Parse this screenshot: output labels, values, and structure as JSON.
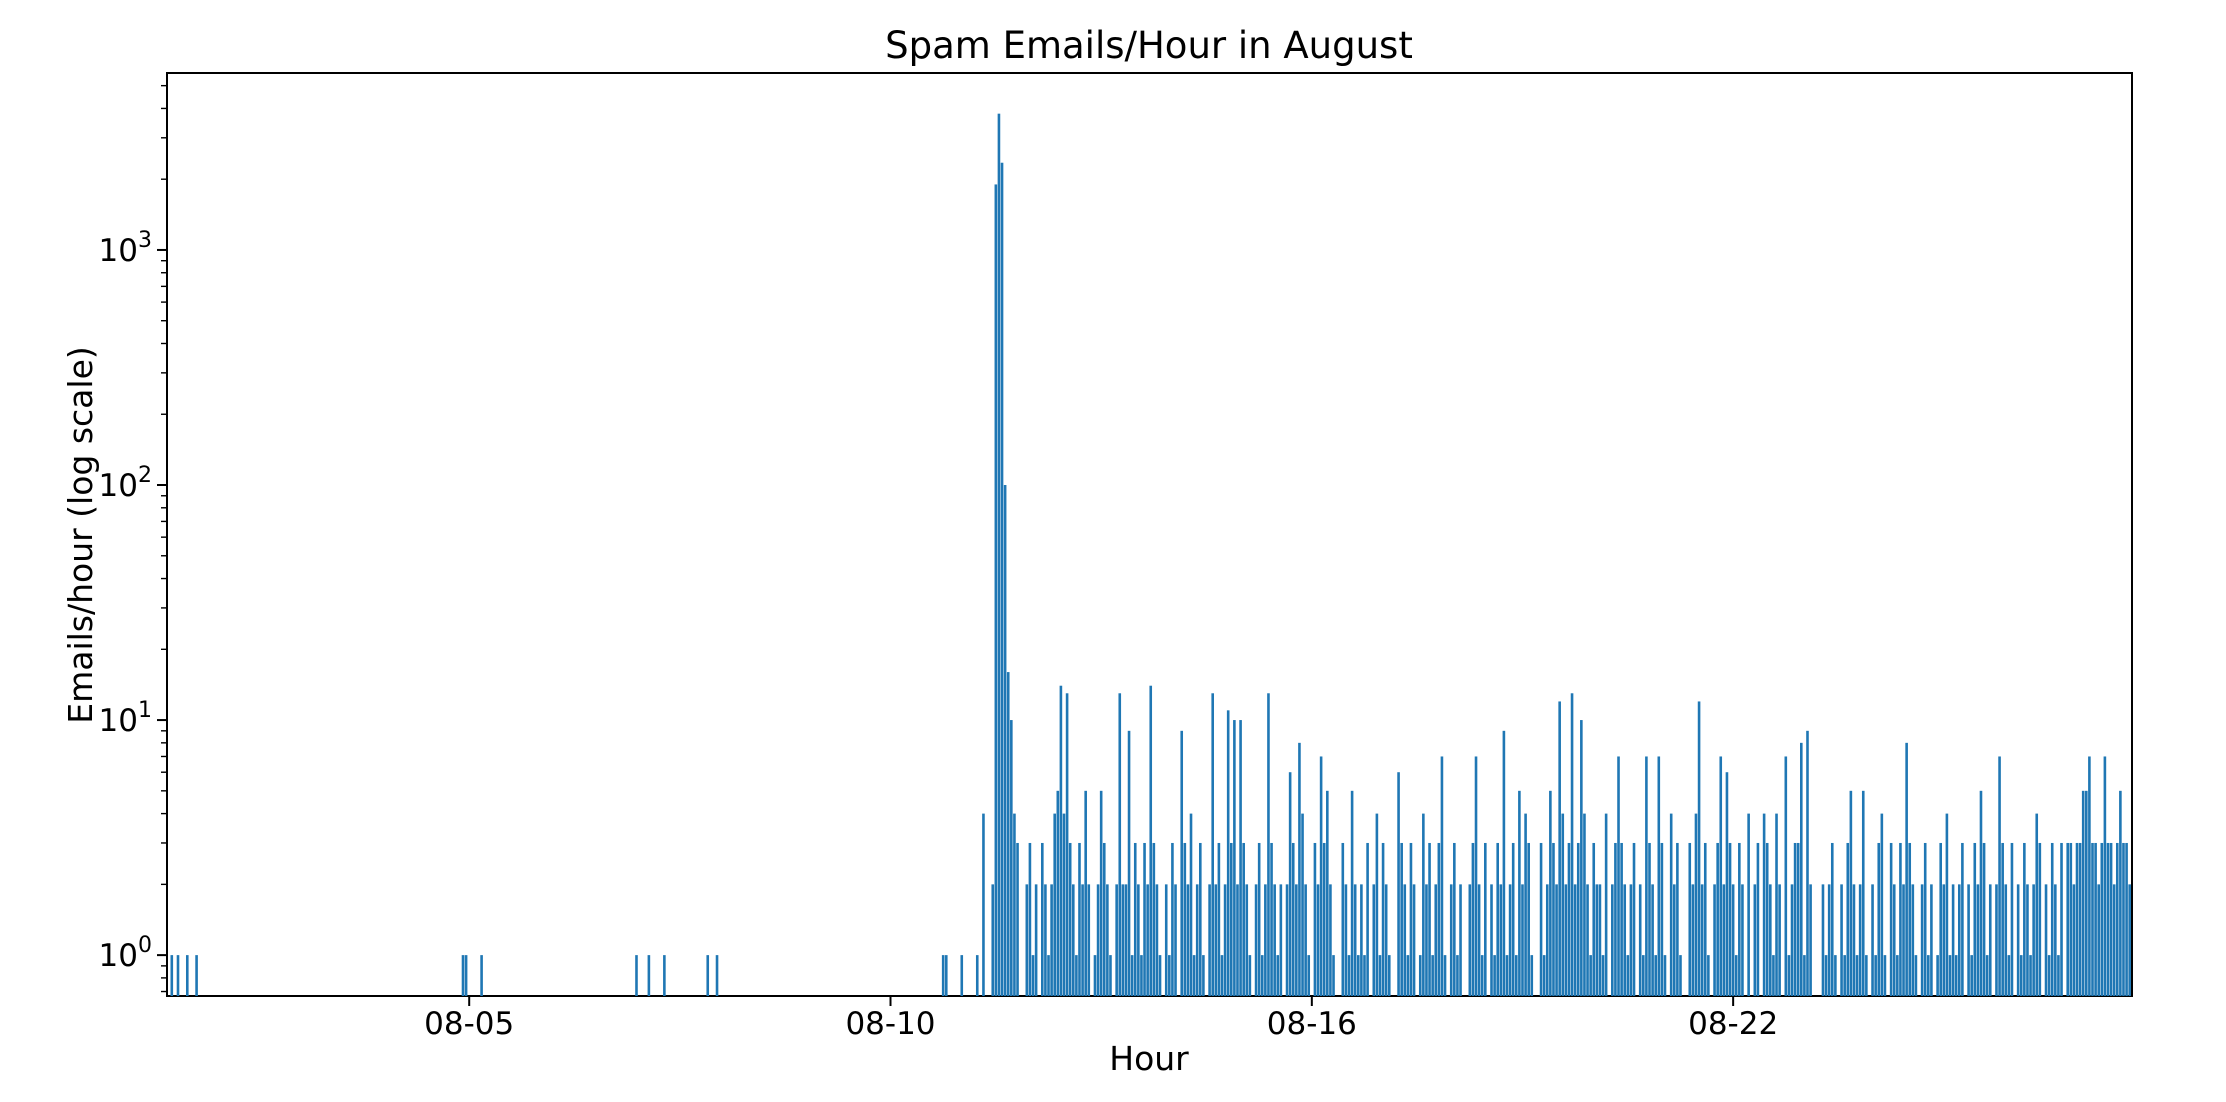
{
  "page": {
    "background": "#ffffff"
  },
  "chart_data": {
    "type": "bar",
    "title": "Spam Emails/Hour in August",
    "xlabel": "Hour",
    "ylabel": "Emails/hour (log scale)",
    "yscale": "log",
    "grid": false,
    "legend": null,
    "bar_color": "#1f77b4",
    "axis_color": "#000000",
    "background_color": "#ffffff",
    "bin_hours": 1,
    "xlim_hour_index": [
      -1.55,
      632.75
    ],
    "ylim": [
      0.67,
      5660
    ],
    "xticks": [
      {
        "hour_index": 96,
        "label": "08-05"
      },
      {
        "hour_index": 232,
        "label": "08-10"
      },
      {
        "hour_index": 368,
        "label": "08-16"
      },
      {
        "hour_index": 504,
        "label": "08-22"
      }
    ],
    "yticks": [
      {
        "value": 1,
        "base": "10",
        "exp": "0"
      },
      {
        "value": 10,
        "base": "10",
        "exp": "1"
      },
      {
        "value": 100,
        "base": "10",
        "exp": "2"
      },
      {
        "value": 1000,
        "base": "10",
        "exp": "3"
      }
    ],
    "minor_ytick_mantissas": [
      2,
      3,
      4,
      5,
      6,
      7,
      8,
      9
    ],
    "values": [
      1,
      0,
      1,
      0,
      0,
      1,
      0,
      0,
      1,
      0,
      0,
      0,
      0,
      0,
      0,
      0,
      0,
      0,
      0,
      0,
      0,
      0,
      0,
      0,
      0,
      0,
      0,
      0,
      0,
      0,
      0,
      0,
      0,
      0,
      0,
      0,
      0,
      0,
      0,
      0,
      0,
      0,
      0,
      0,
      0,
      0,
      0,
      0,
      0,
      0,
      0,
      0,
      0,
      0,
      0,
      0,
      0,
      0,
      0,
      0,
      0,
      0,
      0,
      0,
      0,
      0,
      0,
      0,
      0,
      0,
      0,
      0,
      0,
      0,
      0,
      0,
      0,
      0,
      0,
      0,
      0,
      0,
      0,
      0,
      0,
      0,
      0,
      0,
      0,
      0,
      0,
      0,
      0,
      0,
      1,
      1,
      0,
      0,
      0,
      0,
      1,
      0,
      0,
      0,
      0,
      0,
      0,
      0,
      0,
      0,
      0,
      0,
      0,
      0,
      0,
      0,
      0,
      0,
      0,
      0,
      0,
      0,
      0,
      0,
      0,
      0,
      0,
      0,
      0,
      0,
      0,
      0,
      0,
      0,
      0,
      0,
      0,
      0,
      0,
      0,
      0,
      0,
      0,
      0,
      0,
      0,
      0,
      0,
      0,
      0,
      1,
      0,
      0,
      0,
      1,
      0,
      0,
      0,
      0,
      1,
      0,
      0,
      0,
      0,
      0,
      0,
      0,
      0,
      0,
      0,
      0,
      0,
      0,
      1,
      0,
      0,
      1,
      0,
      0,
      0,
      0,
      0,
      0,
      0,
      0,
      0,
      0,
      0,
      0,
      0,
      0,
      0,
      0,
      0,
      0,
      0,
      0,
      0,
      0,
      0,
      0,
      0,
      0,
      0,
      0,
      0,
      0,
      0,
      0,
      0,
      0,
      0,
      0,
      0,
      0,
      0,
      0,
      0,
      0,
      0,
      0,
      0,
      0,
      0,
      0,
      0,
      0,
      0,
      0,
      0,
      0,
      0,
      0,
      0,
      0,
      0,
      0,
      0,
      0,
      0,
      0,
      0,
      0,
      0,
      0,
      0,
      0,
      0,
      0,
      1,
      1,
      0,
      0,
      0,
      0,
      1,
      0,
      0,
      0,
      0,
      1,
      0,
      4,
      0,
      0,
      2,
      1900,
      3800,
      2350,
      100,
      16,
      10,
      4,
      3,
      0,
      0,
      2,
      3,
      1,
      2,
      0,
      3,
      2,
      1,
      2,
      4,
      5,
      14,
      4,
      13,
      3,
      2,
      1,
      3,
      2,
      5,
      2,
      0,
      1,
      2,
      5,
      3,
      2,
      1,
      0,
      2,
      13,
      2,
      2,
      9,
      1,
      3,
      2,
      1,
      3,
      2,
      14,
      3,
      2,
      1,
      0,
      2,
      1,
      3,
      2,
      0,
      9,
      3,
      2,
      4,
      1,
      2,
      3,
      1,
      0,
      2,
      13,
      2,
      3,
      1,
      2,
      11,
      3,
      10,
      2,
      10,
      3,
      2,
      1,
      0,
      2,
      3,
      1,
      2,
      13,
      3,
      2,
      1,
      2,
      0,
      2,
      6,
      3,
      2,
      8,
      4,
      2,
      1,
      0,
      3,
      2,
      7,
      3,
      5,
      2,
      1,
      0,
      0,
      3,
      2,
      1,
      5,
      2,
      1,
      2,
      1,
      3,
      0,
      2,
      4,
      1,
      3,
      2,
      1,
      0,
      0,
      6,
      3,
      2,
      1,
      3,
      2,
      0,
      1,
      4,
      2,
      3,
      1,
      2,
      3,
      7,
      1,
      0,
      2,
      3,
      1,
      2,
      0,
      0,
      2,
      3,
      7,
      2,
      1,
      3,
      0,
      2,
      1,
      3,
      2,
      9,
      1,
      2,
      3,
      1,
      5,
      2,
      4,
      3,
      1,
      0,
      0,
      3,
      1,
      2,
      5,
      3,
      2,
      12,
      4,
      2,
      3,
      13,
      2,
      3,
      10,
      4,
      2,
      1,
      3,
      2,
      2,
      1,
      4,
      0,
      2,
      3,
      7,
      3,
      2,
      1,
      2,
      3,
      0,
      2,
      1,
      7,
      3,
      2,
      1,
      7,
      3,
      1,
      0,
      4,
      2,
      3,
      1,
      0,
      0,
      3,
      2,
      4,
      12,
      2,
      3,
      1,
      0,
      2,
      3,
      7,
      2,
      6,
      3,
      2,
      1,
      3,
      2,
      0,
      4,
      0,
      2,
      3,
      0,
      4,
      3,
      2,
      1,
      4,
      2,
      0,
      7,
      1,
      2,
      3,
      3,
      8,
      1,
      9,
      2,
      0,
      0,
      0,
      2,
      1,
      2,
      3,
      1,
      0,
      2,
      1,
      3,
      5,
      2,
      1,
      2,
      5,
      1,
      0,
      2,
      1,
      3,
      4,
      1,
      0,
      3,
      2,
      1,
      3,
      2,
      8,
      3,
      2,
      1,
      0,
      2,
      3,
      1,
      2,
      0,
      1,
      3,
      2,
      4,
      1,
      2,
      1,
      2,
      3,
      0,
      2,
      1,
      3,
      2,
      5,
      3,
      1,
      2,
      0,
      2,
      7,
      3,
      2,
      1,
      3,
      0,
      2,
      1,
      3,
      2,
      1,
      2,
      4,
      3,
      0,
      2,
      1,
      3,
      2,
      1,
      3,
      0,
      3,
      3,
      2,
      3,
      3,
      5,
      5,
      7,
      3,
      3,
      2,
      3,
      7,
      3,
      3,
      2,
      3,
      5,
      3,
      3,
      2
    ]
  }
}
